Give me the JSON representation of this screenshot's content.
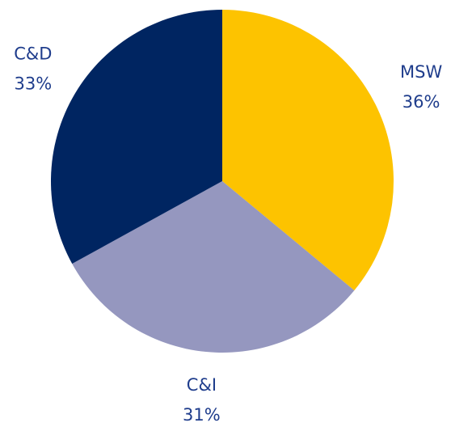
{
  "chart_data": {
    "type": "pie",
    "categories": [
      "MSW",
      "C&I",
      "C&D"
    ],
    "values": [
      36,
      31,
      33
    ],
    "value_labels": [
      "36%",
      "31%",
      "33%"
    ],
    "colors": [
      "#fdc300",
      "#9597bf",
      "#002561"
    ]
  }
}
